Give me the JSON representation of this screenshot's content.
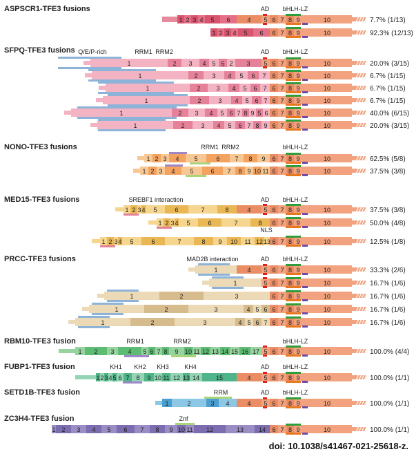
{
  "colors": {
    "tfe3": "#f2a27e",
    "tfe3_dark": "#ea8c64",
    "aspscr1": "#d9546f",
    "sfpq": "#f4b3c2",
    "sfpq_dark": "#e6819a",
    "nono": "#f3a35f",
    "nono_light": "#f7c894",
    "med15": "#f6d58e",
    "med15_dark": "#e9b753",
    "prcc": "#ecd9b6",
    "prcc_dark": "#d6bb8c",
    "rbm10": "#96d39f",
    "rbm10_dark": "#5dbb73",
    "fubp1": "#4fb48a",
    "fubp1_light": "#93d4b4",
    "setd1b": "#4a9fd1",
    "setd1b_light": "#8cc8e5",
    "zc3h4": "#9b8cc4",
    "zc3h4_dark": "#7c6cb0",
    "ad_mark": "#e0201c",
    "bhlh_mark": "#2e9d3a",
    "lz_mark": "#6c49a8",
    "orange_mark": "#e8781e",
    "blue_bar": "#8db3d9",
    "green_bar": "#a9d47c",
    "purple_bar": "#9e86c9"
  },
  "panels": [
    {
      "title": "ASPSCR1-TFE3 fusions",
      "labels": [
        {
          "text": "AD",
          "at": "ad"
        },
        {
          "text": "bHLH-LZ",
          "at": "bhlh"
        }
      ],
      "rows": [
        {
          "pct": "7.7% (1/13)",
          "partner": [
            {
              "t": "1",
              "w": 10
            },
            {
              "t": "2",
              "w": 10
            },
            {
              "t": "3",
              "w": 10
            },
            {
              "t": "4",
              "w": 10
            },
            {
              "t": "5",
              "w": 22
            },
            {
              "t": "6",
              "w": 24
            }
          ],
          "tfe3start": 4
        },
        {
          "pct": "92.3% (12/13)",
          "partner": [
            {
              "t": "1",
              "w": 10
            },
            {
              "t": "2",
              "w": 10
            },
            {
              "t": "3",
              "w": 10
            },
            {
              "t": "4",
              "w": 10
            },
            {
              "t": "5",
              "w": 22
            },
            {
              "t": "6",
              "w": 24
            }
          ],
          "tfe3start": 6
        }
      ]
    },
    {
      "title": "SFPQ-TFE3 fusions",
      "labels": [
        {
          "text": "Q/E/P-rich",
          "at": "qep"
        },
        {
          "text": "RRM1",
          "at": "rrm1s"
        },
        {
          "text": "RRM2",
          "at": "rrm2s"
        },
        {
          "text": "AD",
          "at": "ad"
        },
        {
          "text": "bHLH-LZ",
          "at": "bhlh"
        }
      ],
      "rows": [
        {
          "pct": "20.0% (3/15)",
          "tfe3start": 5
        },
        {
          "pct": "6.7% (1/15)",
          "tfe3start": 6
        },
        {
          "pct": "6.7% (1/15)",
          "tfe3start": 6
        },
        {
          "pct": "6.7% (1/15)",
          "tfe3start": 6
        },
        {
          "pct": "40.0% (6/15)",
          "tfe3start": 6
        },
        {
          "pct": "20.0% (3/15)",
          "tfe3start": 6
        }
      ]
    },
    {
      "title": "NONO-TFE3 fusions",
      "labels": [
        {
          "text": "RRM1",
          "at": "rrm1n"
        },
        {
          "text": "RRM2",
          "at": "rrm2n"
        },
        {
          "text": "bHLH-LZ",
          "at": "bhlh"
        }
      ],
      "rows": [
        {
          "pct": "62.5% (5/8)",
          "partner": [
            "1",
            "2",
            "3",
            "4",
            "5",
            "6",
            "7",
            "8",
            "9"
          ],
          "tfe3start": 6
        },
        {
          "pct": "37.5% (3/8)",
          "partner": [
            "1",
            "2",
            "3",
            "4",
            "5",
            "6",
            "7",
            "8",
            "9",
            "10",
            "11"
          ],
          "tfe3start": 6
        }
      ]
    },
    {
      "title": "MED15-TFE3 fusions",
      "labels": [
        {
          "text": "SREBF1 interaction",
          "at": "srebf"
        },
        {
          "text": "AD",
          "at": "ad"
        },
        {
          "text": "bHLH-LZ",
          "at": "bhlh"
        },
        {
          "text": "NLS",
          "at": "nls"
        }
      ],
      "rows": [
        {
          "pct": "37.5% (3/8)",
          "partner": [
            "1",
            "2",
            "3",
            "4",
            "5",
            "6",
            "7",
            "8"
          ],
          "tfe3start": 4
        },
        {
          "pct": "50.0% (4/8)",
          "partner": [
            "1",
            "2",
            "3",
            "4",
            "5",
            "6",
            "7",
            "8"
          ],
          "tfe3start": 6
        },
        {
          "pct": "12.5% (1/8)",
          "partner": [
            "1",
            "2",
            "3",
            "4",
            "5",
            "6",
            "7",
            "8",
            "9",
            "10",
            "11",
            "12",
            "13"
          ],
          "tfe3start": 6
        }
      ]
    },
    {
      "title": "PRCC-TFE3 fusions",
      "labels": [
        {
          "text": "MAD2B interaction",
          "at": "mad2b"
        },
        {
          "text": "AD",
          "at": "ad"
        },
        {
          "text": "bHLH-LZ",
          "at": "bhlh"
        }
      ],
      "rows": [
        {
          "pct": "33.3% (2/6)",
          "partner": [
            "1"
          ],
          "tfe3start": 4
        },
        {
          "pct": "16.7% (1/6)",
          "partner": [
            "1"
          ],
          "tfe3start": 5
        },
        {
          "pct": "16.7% (1/6)",
          "partner": [
            "1",
            "2",
            "3"
          ],
          "tfe3start": 6
        },
        {
          "pct": "16.7% (1/6)",
          "partner": [
            "1",
            "2",
            "3",
            "4",
            "5",
            "6"
          ],
          "tfe3start": 6
        },
        {
          "pct": "16.7% (1/6)",
          "partner": [
            "1",
            "2",
            "3",
            "4",
            "5",
            "6",
            "7"
          ],
          "tfe3start": 6
        }
      ]
    },
    {
      "title": "RBM10-TFE3 fusion",
      "labels": [
        {
          "text": "RRM1",
          "at": "rrm1r"
        },
        {
          "text": "RRM2",
          "at": "rrm2r"
        },
        {
          "text": "bHLH-LZ",
          "at": "bhlh"
        }
      ],
      "rows": [
        {
          "pct": "100.0% (4/4)",
          "partner": [
            "1",
            "2",
            "3",
            "4",
            "5",
            "6",
            "7",
            "8",
            "9",
            "10",
            "11",
            "12",
            "13",
            "14",
            "15",
            "16",
            "17"
          ],
          "tfe3start": 5
        }
      ]
    },
    {
      "title": "FUBP1-TFE3 fusion",
      "labels": [
        {
          "text": "KH1",
          "at": "kh1"
        },
        {
          "text": "KH2",
          "at": "kh2"
        },
        {
          "text": "KH3",
          "at": "kh3"
        },
        {
          "text": "KH4",
          "at": "kh4"
        },
        {
          "text": "AD",
          "at": "ad"
        },
        {
          "text": "bHLH-LZ",
          "at": "bhlh"
        }
      ],
      "rows": [
        {
          "pct": "100.0% (1/1)",
          "partner": [
            "1",
            "2",
            "3",
            "4",
            "5",
            "6",
            "7",
            "8",
            "9",
            "10",
            "11",
            "12",
            "13",
            "14",
            "15"
          ],
          "tfe3start": 4
        }
      ]
    },
    {
      "title": "SETD1B-TFE3 fusion",
      "labels": [
        {
          "text": "RRM",
          "at": "rrm"
        },
        {
          "text": "AD",
          "at": "ad"
        },
        {
          "text": "bHLH-LZ",
          "at": "bhlh"
        }
      ],
      "rows": [
        {
          "pct": "100.0% (1/1)",
          "partner": [
            "1",
            "2",
            "3",
            "4"
          ],
          "tfe3start": 4
        }
      ]
    },
    {
      "title": "ZC3H4-TFE3 fusion",
      "labels": [
        {
          "text": "Znf",
          "at": "znf"
        }
      ],
      "rows": [
        {
          "pct": "100.0% (1/1)",
          "partner": [
            "1",
            "2",
            "3",
            "4",
            "5",
            "6",
            "7",
            "8",
            "9",
            "10",
            "11",
            "12",
            "13",
            "14"
          ],
          "tfe3start": 6
        }
      ]
    }
  ],
  "doi": "doi: 10.1038/s41467-021-25618-z."
}
